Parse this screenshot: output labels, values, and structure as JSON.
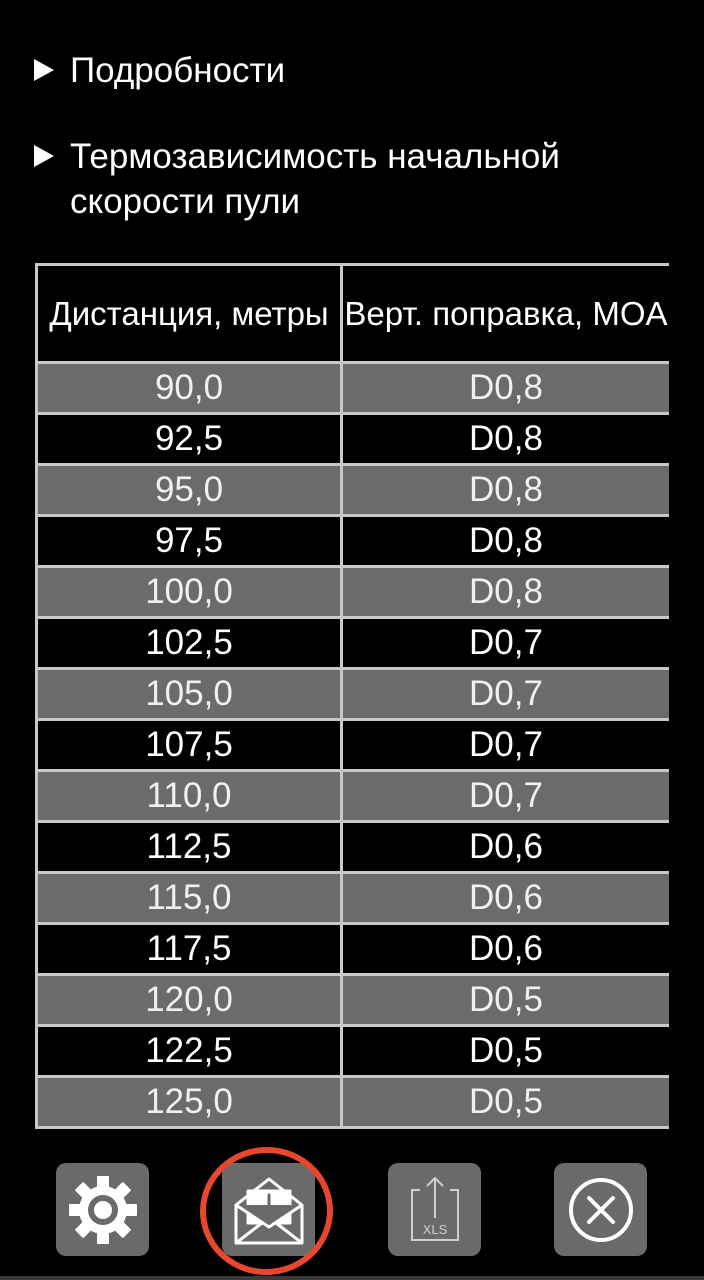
{
  "sections": {
    "details_label": "Подробности",
    "thermo_label": "Термозависимость начальной скорости пули"
  },
  "table": {
    "headers": [
      "Дистанция, метры",
      "Верт. поправка, MOA"
    ],
    "rows": [
      [
        "90,0",
        "D0,8"
      ],
      [
        "92,5",
        "D0,8"
      ],
      [
        "95,0",
        "D0,8"
      ],
      [
        "97,5",
        "D0,8"
      ],
      [
        "100,0",
        "D0,8"
      ],
      [
        "102,5",
        "D0,7"
      ],
      [
        "105,0",
        "D0,7"
      ],
      [
        "107,5",
        "D0,7"
      ],
      [
        "110,0",
        "D0,7"
      ],
      [
        "112,5",
        "D0,6"
      ],
      [
        "115,0",
        "D0,6"
      ],
      [
        "117,5",
        "D0,6"
      ],
      [
        "120,0",
        "D0,5"
      ],
      [
        "122,5",
        "D0,5"
      ],
      [
        "125,0",
        "D0,5"
      ]
    ]
  },
  "toolbar": {
    "export_badge": "XLS",
    "icons": [
      "gear-icon",
      "mail-download-icon",
      "xls-export-icon",
      "close-circle-icon"
    ],
    "highlight_color": "#e8472f",
    "button_color": "#6a6a6a"
  }
}
